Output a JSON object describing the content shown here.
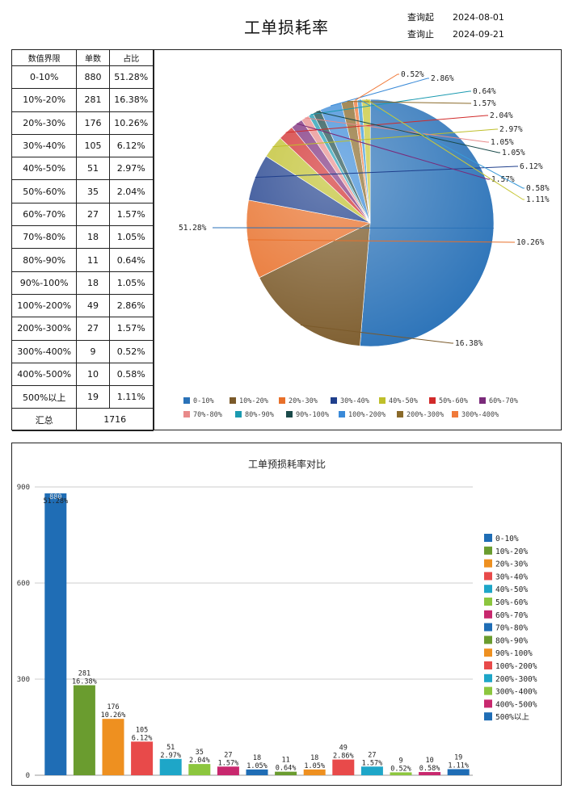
{
  "header": {
    "title": "工单损耗率",
    "query_start_label": "查询起",
    "query_start": "2024-08-01",
    "query_end_label": "查询止",
    "query_end": "2024-09-21"
  },
  "table": {
    "headers": [
      "数值界限",
      "单数",
      "占比"
    ],
    "rows": [
      [
        "0-10%",
        "880",
        "51.28%"
      ],
      [
        "10%-20%",
        "281",
        "16.38%"
      ],
      [
        "20%-30%",
        "176",
        "10.26%"
      ],
      [
        "30%-40%",
        "105",
        "6.12%"
      ],
      [
        "40%-50%",
        "51",
        "2.97%"
      ],
      [
        "50%-60%",
        "35",
        "2.04%"
      ],
      [
        "60%-70%",
        "27",
        "1.57%"
      ],
      [
        "70%-80%",
        "18",
        "1.05%"
      ],
      [
        "80%-90%",
        "11",
        "0.64%"
      ],
      [
        "90%-100%",
        "18",
        "1.05%"
      ],
      [
        "100%-200%",
        "49",
        "2.86%"
      ],
      [
        "200%-300%",
        "27",
        "1.57%"
      ],
      [
        "300%-400%",
        "9",
        "0.52%"
      ],
      [
        "400%-500%",
        "10",
        "0.58%"
      ],
      [
        "500%以上",
        "19",
        "1.11%"
      ]
    ],
    "total_label": "汇总",
    "total_value": "1716"
  },
  "chart_data": [
    {
      "type": "pie",
      "categories": [
        "0-10%",
        "10%-20%",
        "20%-30%",
        "30%-40%",
        "40%-50%",
        "50%-60%",
        "60%-70%",
        "70%-80%",
        "80%-90%",
        "90%-100%",
        "100%-200%",
        "200%-300%",
        "300%-400%",
        "400%-500%",
        "500%以上"
      ],
      "values": [
        51.28,
        16.38,
        10.26,
        6.12,
        2.97,
        2.04,
        1.57,
        1.05,
        0.64,
        1.05,
        2.86,
        1.57,
        0.52,
        0.58,
        1.11
      ],
      "labels": [
        "51.28%",
        "16.38%",
        "10.26%",
        "6.12%",
        "2.97%",
        "2.04%",
        "1.57%",
        "1.05%",
        "0.64%",
        "1.05%",
        "2.86%",
        "1.57%",
        "0.52%",
        "0.58%",
        "1.11%"
      ],
      "legend_entries": [
        "0-10%",
        "10%-20%",
        "20%-30%",
        "30%-40%",
        "40%-50%",
        "50%-60%",
        "60%-70%",
        "70%-80%",
        "80%-90%",
        "90%-100%",
        "100%-200%",
        "200%-300%",
        "300%-400%"
      ],
      "colors": [
        "#2a72b8",
        "#7b5a2a",
        "#e8702a",
        "#1f3f8c",
        "#bfbf2a",
        "#d12a2a",
        "#7a2a7a",
        "#e88a8a",
        "#1a9ab0",
        "#1a4a4a",
        "#3a8ad8",
        "#8a6a2a",
        "#f07a3a",
        "#3a9ad8",
        "#c8c83a"
      ],
      "legend": "bottom"
    },
    {
      "type": "bar",
      "title": "工单预损耗率对比",
      "categories": [
        "0-10%",
        "10%-20%",
        "20%-30%",
        "30%-40%",
        "40%-50%",
        "50%-60%",
        "60%-70%",
        "70%-80%",
        "80%-90%",
        "90%-100%",
        "100%-200%",
        "200%-300%",
        "300%-400%",
        "400%-500%",
        "500%以上"
      ],
      "values": [
        880,
        281,
        176,
        105,
        51,
        35,
        27,
        18,
        11,
        18,
        49,
        27,
        9,
        10,
        19
      ],
      "pct_labels": [
        "51.28%",
        "16.38%",
        "10.26%",
        "6.12%",
        "2.97%",
        "2.04%",
        "1.57%",
        "1.05%",
        "0.64%",
        "1.05%",
        "2.86%",
        "1.57%",
        "0.52%",
        "0.58%",
        "1.11%"
      ],
      "colors": [
        "#1f6db5",
        "#6a9c2f",
        "#ee9020",
        "#e84a4a",
        "#1ea6c8",
        "#8cc63e",
        "#c8286e",
        "#1f6db5",
        "#6a9c2f",
        "#ee9020",
        "#e84a4a",
        "#1ea6c8",
        "#8cc63e",
        "#c8286e",
        "#1f6db5"
      ],
      "yticks": [
        "0",
        "300",
        "600",
        "900"
      ],
      "ylim": [
        0,
        900
      ],
      "grid": true,
      "legend": "right"
    }
  ]
}
